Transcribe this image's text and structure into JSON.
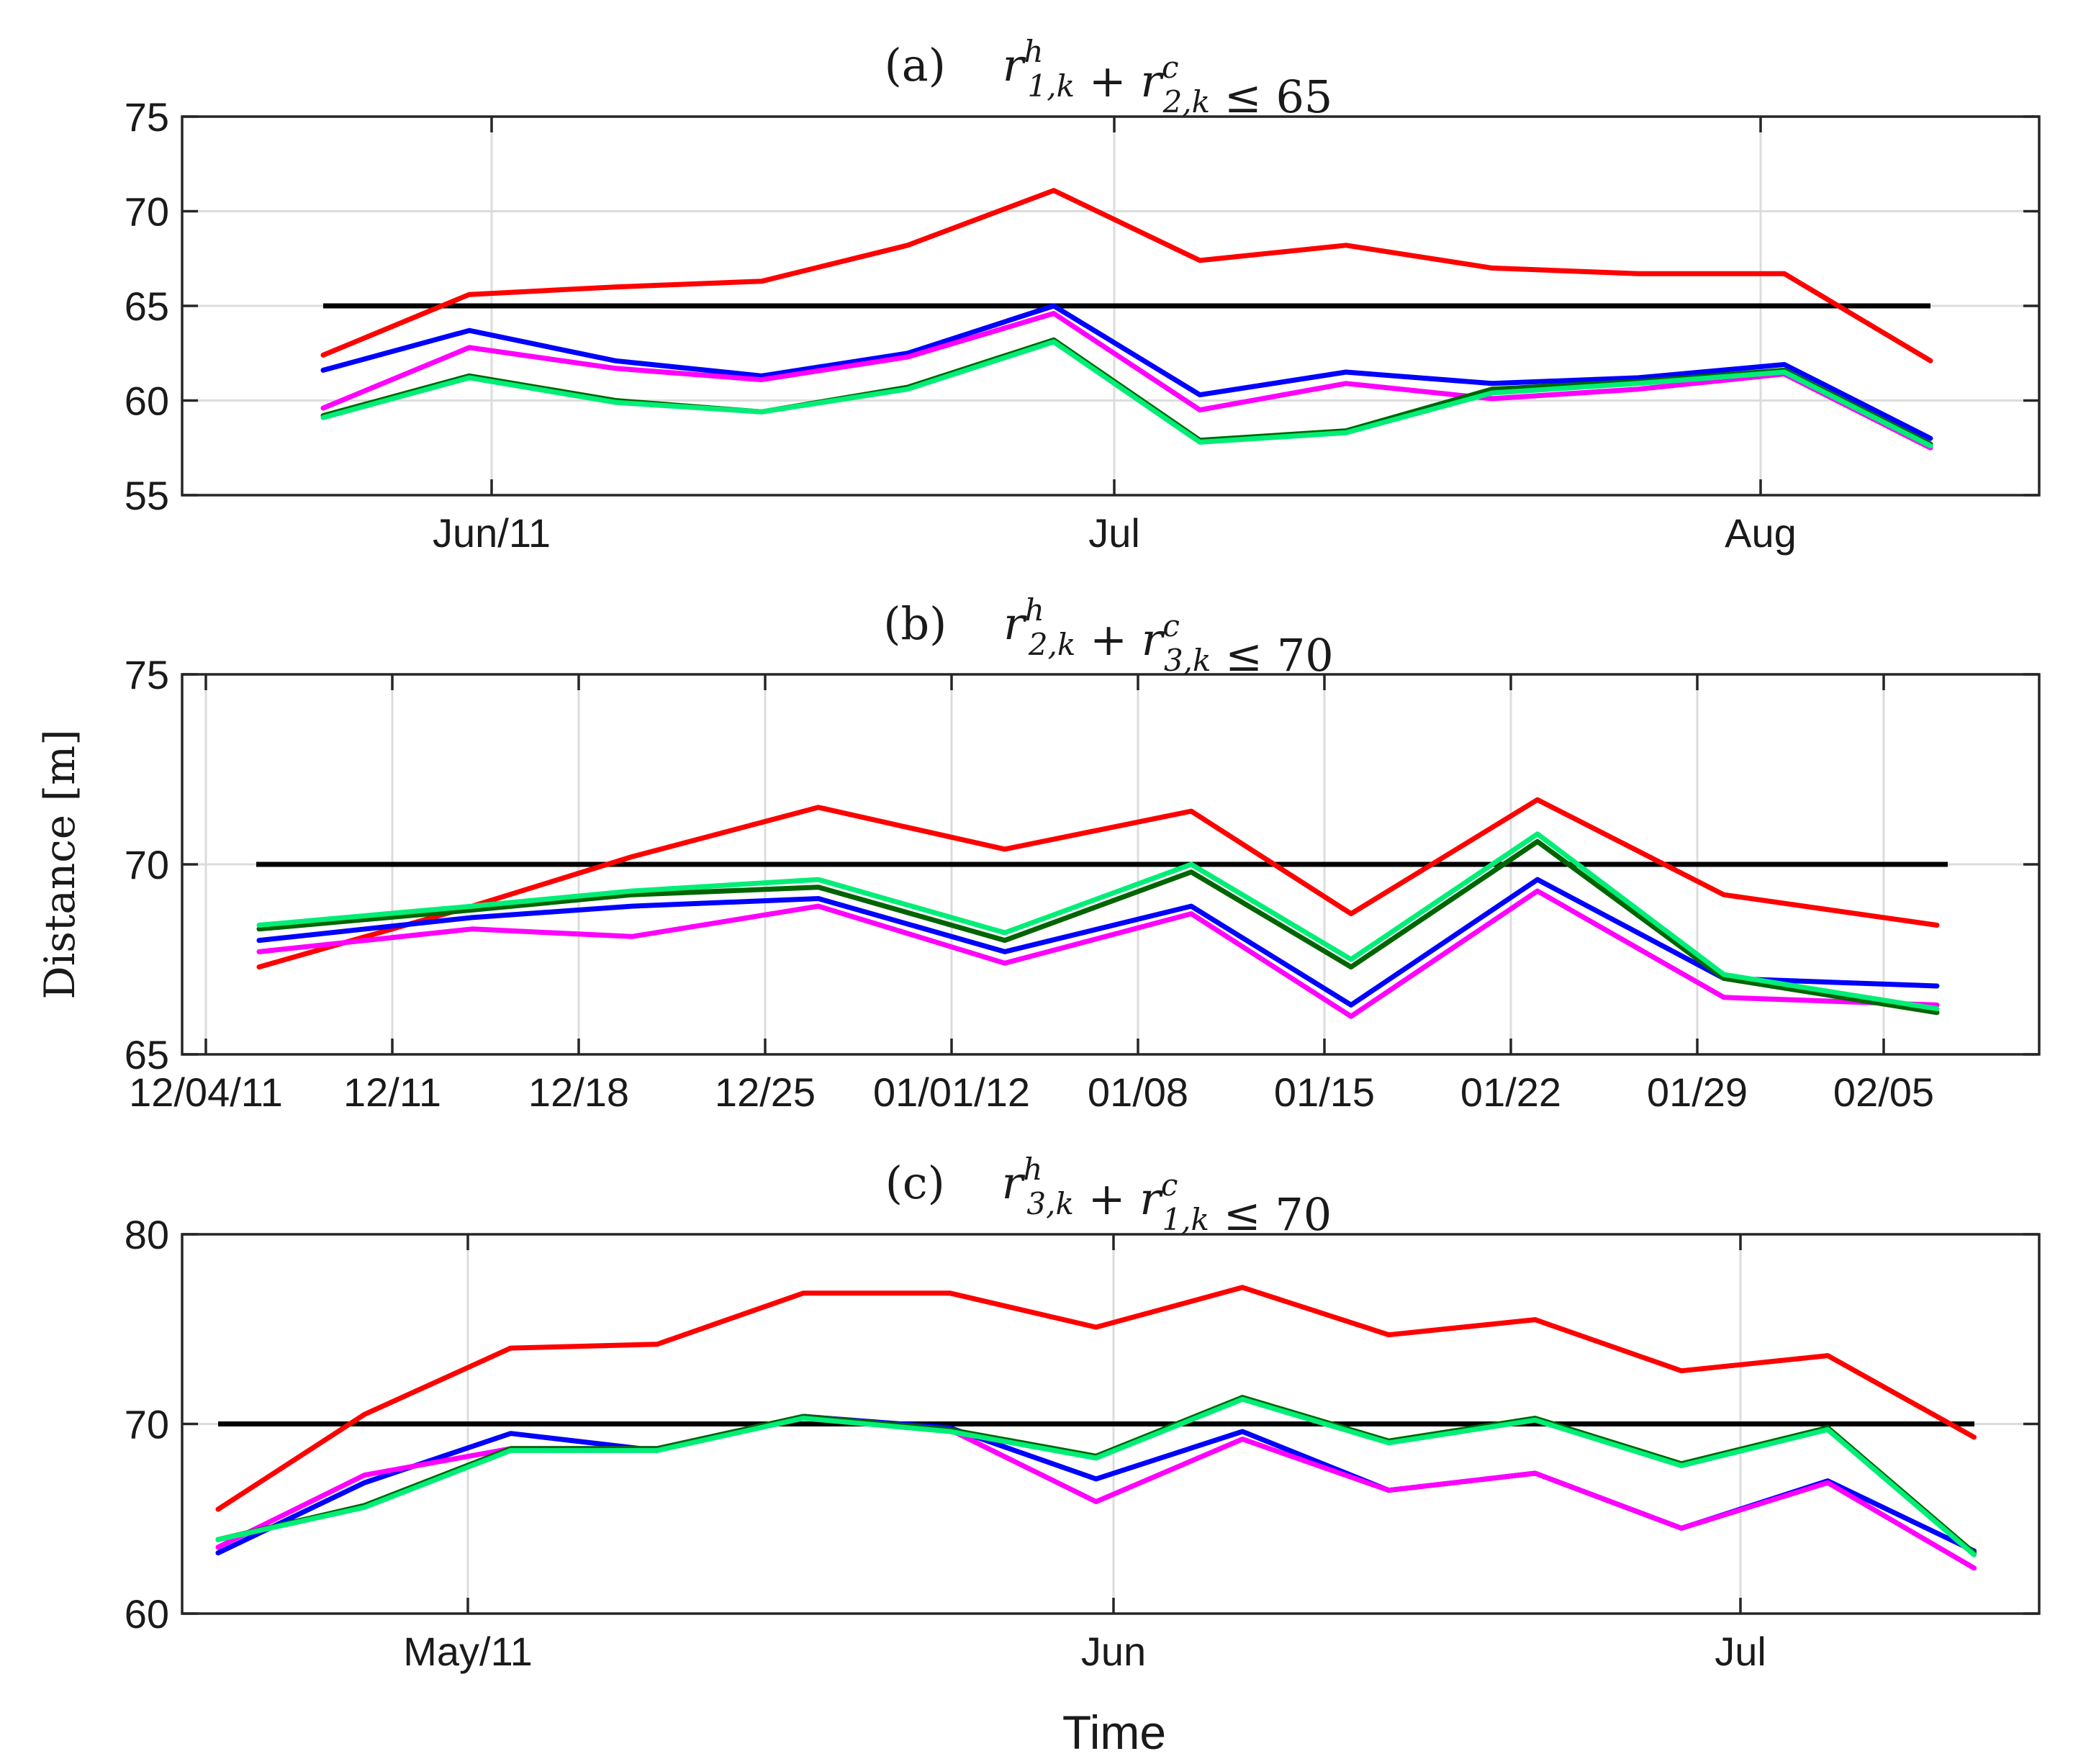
{
  "chart_data": [
    {
      "type": "line",
      "title": "(a)    r^h_{1,k} + r^c_{2,k} ≤ 65",
      "ylim": [
        55,
        75
      ],
      "yticks": [
        55,
        60,
        65,
        70,
        75
      ],
      "xlabel": "",
      "ylabel": "",
      "xlim": [
        0,
        18
      ],
      "xticks": [
        {
          "x": 2.6,
          "label": "Jun/11"
        },
        {
          "x": 10.4,
          "label": "Jul"
        },
        {
          "x": 18.4,
          "label": "Aug"
        }
      ],
      "x": [
        0,
        1,
        2,
        3,
        4,
        5,
        6,
        7,
        8,
        9,
        10,
        11
      ],
      "threshold": 65,
      "series": [
        {
          "color": "#ff0000",
          "values": [
            62.4,
            65.6,
            66.0,
            66.3,
            68.2,
            71.1,
            67.4,
            68.2,
            67.0,
            66.7,
            66.7,
            62.1
          ]
        },
        {
          "color": "#0000ff",
          "values": [
            61.6,
            63.7,
            62.1,
            61.3,
            62.5,
            65.0,
            60.3,
            61.5,
            60.9,
            61.2,
            61.9,
            58.0
          ]
        },
        {
          "color": "#ff00ff",
          "values": [
            59.6,
            62.8,
            61.7,
            61.1,
            62.3,
            64.6,
            59.5,
            60.9,
            60.1,
            60.6,
            61.4,
            57.5
          ]
        },
        {
          "color": "#006400",
          "values": [
            59.2,
            61.3,
            60.0,
            59.4,
            60.7,
            63.2,
            57.9,
            58.4,
            60.6,
            61.0,
            61.6,
            57.7
          ]
        },
        {
          "color": "#00ee77",
          "values": [
            59.1,
            61.2,
            59.9,
            59.4,
            60.6,
            63.1,
            57.8,
            58.3,
            60.4,
            60.9,
            61.5,
            57.6
          ]
        }
      ]
    },
    {
      "type": "line",
      "title": "(b)    r^h_{2,k} + r^c_{3,k} ≤ 70",
      "ylim": [
        65,
        75
      ],
      "yticks": [
        65,
        70,
        75
      ],
      "xlabel": "",
      "ylabel": "Distance [m]",
      "xlim": [
        0,
        71
      ],
      "xticks": [
        {
          "x": 0,
          "label": "12/04/11"
        },
        {
          "x": 7,
          "label": "12/11"
        },
        {
          "x": 14,
          "label": "12/18"
        },
        {
          "x": 21,
          "label": "12/25"
        },
        {
          "x": 28,
          "label": "01/01/12"
        },
        {
          "x": 35,
          "label": "01/08"
        },
        {
          "x": 42,
          "label": "01/15"
        },
        {
          "x": 49,
          "label": "01/22"
        },
        {
          "x": 56,
          "label": "01/29"
        },
        {
          "x": 63,
          "label": "02/05"
        }
      ],
      "x": [
        2,
        10,
        16,
        23,
        30,
        37,
        43,
        50,
        57,
        65
      ],
      "threshold": 70,
      "series": [
        {
          "color": "#ff0000",
          "values": [
            67.3,
            68.9,
            70.2,
            71.5,
            70.4,
            71.4,
            68.7,
            71.7,
            69.2,
            68.4
          ]
        },
        {
          "color": "#0000ff",
          "values": [
            68.0,
            68.6,
            68.9,
            69.1,
            67.7,
            68.9,
            66.3,
            69.6,
            67.0,
            66.8
          ]
        },
        {
          "color": "#ff00ff",
          "values": [
            67.7,
            68.3,
            68.1,
            68.9,
            67.4,
            68.7,
            66.0,
            69.3,
            66.5,
            66.3
          ]
        },
        {
          "color": "#006400",
          "values": [
            68.3,
            68.8,
            69.2,
            69.4,
            68.0,
            69.8,
            67.3,
            70.6,
            67.0,
            66.1
          ]
        },
        {
          "color": "#00ee77",
          "values": [
            68.4,
            68.9,
            69.3,
            69.6,
            68.2,
            70.0,
            67.5,
            70.8,
            67.1,
            66.2
          ]
        }
      ]
    },
    {
      "type": "line",
      "title": "(c)    r^h_{3,k} + r^c_{1,k} ≤ 70",
      "ylim": [
        60,
        80
      ],
      "yticks": [
        60,
        70,
        80
      ],
      "xlabel": "Time",
      "ylabel": "",
      "xlim": [
        0,
        13.56
      ],
      "xticks": [
        {
          "x": 1.85,
          "label": "May/11"
        },
        {
          "x": 6.24,
          "label": "Jun"
        },
        {
          "x": 10.48,
          "label": "Jul"
        }
      ],
      "x": [
        0,
        1,
        2,
        3,
        4,
        5,
        6,
        7,
        8,
        9,
        10,
        11,
        12
      ],
      "threshold": 70,
      "series": [
        {
          "color": "#ff0000",
          "values": [
            65.5,
            70.5,
            74.0,
            74.2,
            76.9,
            76.9,
            75.1,
            77.2,
            74.7,
            75.5,
            72.8,
            73.6,
            69.3
          ]
        },
        {
          "color": "#0000ff",
          "values": [
            63.2,
            66.9,
            69.5,
            68.6,
            70.4,
            69.8,
            67.1,
            69.6,
            66.5,
            67.4,
            64.5,
            67.0,
            63.3
          ]
        },
        {
          "color": "#ff00ff",
          "values": [
            63.5,
            67.3,
            68.7,
            68.7,
            70.4,
            69.7,
            65.9,
            69.2,
            66.5,
            67.4,
            64.5,
            66.9,
            62.4
          ]
        },
        {
          "color": "#006400",
          "values": [
            63.9,
            65.7,
            68.7,
            68.7,
            70.4,
            69.7,
            68.3,
            71.4,
            69.1,
            70.3,
            67.9,
            69.8,
            63.2
          ]
        },
        {
          "color": "#00ee77",
          "values": [
            63.9,
            65.6,
            68.6,
            68.6,
            70.3,
            69.6,
            68.2,
            71.3,
            69.0,
            70.2,
            67.8,
            69.7,
            63.1
          ]
        }
      ]
    }
  ]
}
